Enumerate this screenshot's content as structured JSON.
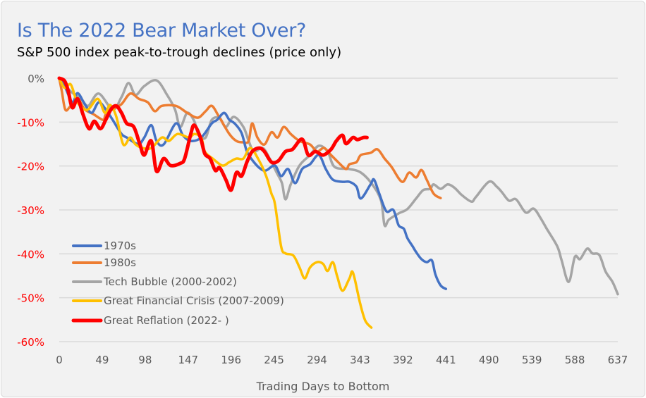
{
  "chart_data": {
    "type": "line",
    "title": "Is The 2022 Bear Market Over?",
    "subtitle": "S&P 500 index peak-to-trough declines (price only)",
    "xlabel": "Trading Days to Bottom",
    "ylabel": "",
    "xlim": [
      0,
      637
    ],
    "ylim": [
      -60,
      0
    ],
    "x_ticks": [
      "0",
      "49",
      "98",
      "147",
      "196",
      "245",
      "294",
      "343",
      "392",
      "441",
      "490",
      "539",
      "588",
      "637"
    ],
    "y_ticks": [
      {
        "value": 0,
        "label": "0%",
        "color": "#595959"
      },
      {
        "value": -10,
        "label": "-10%",
        "color": "#ff0000"
      },
      {
        "value": -20,
        "label": "-20%",
        "color": "#ff0000"
      },
      {
        "value": -30,
        "label": "-30%",
        "color": "#ff0000"
      },
      {
        "value": -40,
        "label": "-40%",
        "color": "#ff0000"
      },
      {
        "value": -50,
        "label": "-50%",
        "color": "#ff0000"
      },
      {
        "value": -60,
        "label": "-60%",
        "color": "#ff0000"
      }
    ],
    "grid": "horizontal",
    "legend_position": "bottom-left",
    "series": [
      {
        "name": "1970s",
        "color": "#4472c4",
        "points": [
          [
            0,
            0
          ],
          [
            7,
            -2.2
          ],
          [
            15,
            -5.5
          ],
          [
            21,
            -3.4
          ],
          [
            29,
            -5.9
          ],
          [
            37,
            -7.9
          ],
          [
            45,
            -5.5
          ],
          [
            53,
            -7.1
          ],
          [
            61,
            -9.5
          ],
          [
            71,
            -12.7
          ],
          [
            77,
            -13.5
          ],
          [
            90,
            -15
          ],
          [
            97,
            -13.5
          ],
          [
            105,
            -10.7
          ],
          [
            111,
            -14.3
          ],
          [
            119,
            -15.1
          ],
          [
            133,
            -10.3
          ],
          [
            141,
            -13
          ],
          [
            150,
            -14.3
          ],
          [
            162,
            -13.5
          ],
          [
            174,
            -10.3
          ],
          [
            180,
            -9.5
          ],
          [
            188,
            -7.9
          ],
          [
            194,
            -9.5
          ],
          [
            200,
            -10.3
          ],
          [
            208,
            -12.5
          ],
          [
            214,
            -16.7
          ],
          [
            222,
            -19.1
          ],
          [
            230,
            -20.7
          ],
          [
            236,
            -21
          ],
          [
            246,
            -19.9
          ],
          [
            253,
            -22.3
          ],
          [
            261,
            -20.7
          ],
          [
            269,
            -23.9
          ],
          [
            277,
            -20.7
          ],
          [
            286,
            -19.6
          ],
          [
            296,
            -17.5
          ],
          [
            304,
            -20.7
          ],
          [
            312,
            -23.1
          ],
          [
            323,
            -23.6
          ],
          [
            331,
            -23.6
          ],
          [
            339,
            -24.7
          ],
          [
            344,
            -27.4
          ],
          [
            355,
            -24.2
          ],
          [
            359,
            -23.1
          ],
          [
            365,
            -26.3
          ],
          [
            373,
            -30.3
          ],
          [
            381,
            -30
          ],
          [
            387,
            -33.5
          ],
          [
            393,
            -34.3
          ],
          [
            397,
            -36.4
          ],
          [
            403,
            -38.3
          ],
          [
            407,
            -39.6
          ],
          [
            413,
            -41.2
          ],
          [
            419,
            -41.9
          ],
          [
            425,
            -41.5
          ],
          [
            429,
            -44.7
          ],
          [
            435,
            -47.2
          ],
          [
            441,
            -48
          ]
        ]
      },
      {
        "name": "1980s",
        "color": "#ed7d31",
        "points": [
          [
            0,
            0
          ],
          [
            3,
            -3
          ],
          [
            7,
            -7.2
          ],
          [
            13,
            -6.3
          ],
          [
            21,
            -4.7
          ],
          [
            29,
            -7.1
          ],
          [
            39,
            -8.2
          ],
          [
            50,
            -9.5
          ],
          [
            53,
            -8.3
          ],
          [
            61,
            -7.1
          ],
          [
            71,
            -5.9
          ],
          [
            81,
            -3.5
          ],
          [
            91,
            -4.7
          ],
          [
            101,
            -5.5
          ],
          [
            109,
            -7.5
          ],
          [
            117,
            -6.3
          ],
          [
            133,
            -6.3
          ],
          [
            146,
            -7.9
          ],
          [
            158,
            -9
          ],
          [
            167,
            -7.5
          ],
          [
            174,
            -6.3
          ],
          [
            182,
            -8.7
          ],
          [
            194,
            -12.7
          ],
          [
            202,
            -14.3
          ],
          [
            210,
            -14.6
          ],
          [
            216,
            -14.3
          ],
          [
            220,
            -10.3
          ],
          [
            226,
            -13.5
          ],
          [
            234,
            -15.1
          ],
          [
            242,
            -12.3
          ],
          [
            249,
            -13.5
          ],
          [
            256,
            -11.1
          ],
          [
            264,
            -12.7
          ],
          [
            274,
            -14.3
          ],
          [
            286,
            -15.1
          ],
          [
            294,
            -16.7
          ],
          [
            302,
            -15.9
          ],
          [
            310,
            -17.5
          ],
          [
            318,
            -19.1
          ],
          [
            327,
            -20.7
          ],
          [
            331,
            -19.6
          ],
          [
            339,
            -19.1
          ],
          [
            344,
            -17.5
          ],
          [
            355,
            -17
          ],
          [
            363,
            -16.2
          ],
          [
            371,
            -18.3
          ],
          [
            379,
            -20.2
          ],
          [
            391,
            -23.6
          ],
          [
            399,
            -21.5
          ],
          [
            407,
            -22.6
          ],
          [
            413,
            -20.9
          ],
          [
            419,
            -23.1
          ],
          [
            427,
            -26.3
          ],
          [
            435,
            -27.3
          ]
        ]
      },
      {
        "name": "Tech Bubble (2000-2002)",
        "color": "#a5a5a5",
        "points": [
          [
            0,
            0
          ],
          [
            13,
            -3
          ],
          [
            25,
            -4.7
          ],
          [
            33,
            -6.3
          ],
          [
            45,
            -3.5
          ],
          [
            61,
            -7.1
          ],
          [
            71,
            -4.3
          ],
          [
            79,
            -1.1
          ],
          [
            87,
            -3.8
          ],
          [
            97,
            -1.8
          ],
          [
            111,
            -0.5
          ],
          [
            123,
            -3.8
          ],
          [
            132,
            -7.1
          ],
          [
            138,
            -11.1
          ],
          [
            146,
            -7.9
          ],
          [
            154,
            -9.8
          ],
          [
            159,
            -13
          ],
          [
            167,
            -13.5
          ],
          [
            174,
            -9.5
          ],
          [
            183,
            -9.1
          ],
          [
            190,
            -11.1
          ],
          [
            199,
            -8.8
          ],
          [
            210,
            -11.1
          ],
          [
            216,
            -14.3
          ],
          [
            222,
            -16.7
          ],
          [
            232,
            -15.9
          ],
          [
            240,
            -18.3
          ],
          [
            248,
            -21.5
          ],
          [
            254,
            -23.9
          ],
          [
            258,
            -27.6
          ],
          [
            264,
            -24.2
          ],
          [
            274,
            -19.9
          ],
          [
            286,
            -17.5
          ],
          [
            296,
            -15.4
          ],
          [
            306,
            -16.7
          ],
          [
            314,
            -20.2
          ],
          [
            331,
            -20.7
          ],
          [
            344,
            -21.5
          ],
          [
            357,
            -24.2
          ],
          [
            367,
            -27.9
          ],
          [
            371,
            -33.5
          ],
          [
            376,
            -32.2
          ],
          [
            387,
            -30.8
          ],
          [
            397,
            -29.8
          ],
          [
            407,
            -27.4
          ],
          [
            415,
            -25.5
          ],
          [
            423,
            -25.2
          ],
          [
            427,
            -24.2
          ],
          [
            435,
            -25.2
          ],
          [
            443,
            -24.2
          ],
          [
            451,
            -25
          ],
          [
            459,
            -26.6
          ],
          [
            470,
            -28.1
          ],
          [
            475,
            -27.1
          ],
          [
            490,
            -23.6
          ],
          [
            499,
            -24.7
          ],
          [
            505,
            -26
          ],
          [
            513,
            -27.9
          ],
          [
            521,
            -27.6
          ],
          [
            532,
            -30.6
          ],
          [
            541,
            -29.7
          ],
          [
            549,
            -31.9
          ],
          [
            556,
            -34.3
          ],
          [
            568,
            -38.3
          ],
          [
            573,
            -41.5
          ],
          [
            581,
            -46.4
          ],
          [
            588,
            -40.7
          ],
          [
            594,
            -41.2
          ],
          [
            602,
            -38.8
          ],
          [
            608,
            -39.9
          ],
          [
            616,
            -40.3
          ],
          [
            623,
            -44
          ],
          [
            631,
            -46.4
          ],
          [
            637,
            -49.2
          ]
        ]
      },
      {
        "name": "Great Financial Crisis (2007-2009)",
        "color": "#ffc000",
        "points": [
          [
            0,
            0
          ],
          [
            6,
            -2.2
          ],
          [
            13,
            -1.4
          ],
          [
            19,
            -4.7
          ],
          [
            25,
            -6.6
          ],
          [
            33,
            -7.1
          ],
          [
            44,
            -4.7
          ],
          [
            52,
            -7.9
          ],
          [
            58,
            -6.1
          ],
          [
            65,
            -8.7
          ],
          [
            73,
            -15.1
          ],
          [
            81,
            -13.5
          ],
          [
            87,
            -15.1
          ],
          [
            95,
            -15.9
          ],
          [
            105,
            -15.9
          ],
          [
            117,
            -13.5
          ],
          [
            125,
            -14.3
          ],
          [
            135,
            -12.7
          ],
          [
            148,
            -13.5
          ],
          [
            154,
            -12.7
          ],
          [
            162,
            -13.5
          ],
          [
            166,
            -16.7
          ],
          [
            175,
            -18.3
          ],
          [
            186,
            -19.9
          ],
          [
            194,
            -19.1
          ],
          [
            202,
            -18.3
          ],
          [
            210,
            -18.3
          ],
          [
            218,
            -15.9
          ],
          [
            228,
            -18.8
          ],
          [
            236,
            -22.3
          ],
          [
            242,
            -26.3
          ],
          [
            246,
            -28.7
          ],
          [
            253,
            -38.3
          ],
          [
            258,
            -39.9
          ],
          [
            267,
            -40.4
          ],
          [
            274,
            -43.1
          ],
          [
            280,
            -45.6
          ],
          [
            286,
            -43.1
          ],
          [
            294,
            -41.9
          ],
          [
            301,
            -42.3
          ],
          [
            306,
            -43.9
          ],
          [
            312,
            -41.9
          ],
          [
            317,
            -45.1
          ],
          [
            323,
            -48.4
          ],
          [
            331,
            -45.6
          ],
          [
            335,
            -44.3
          ],
          [
            343,
            -51.2
          ],
          [
            349,
            -55.2
          ],
          [
            356,
            -56.8
          ]
        ]
      },
      {
        "name": "Great Reflation (2022- )",
        "color": "#ff0000",
        "points": [
          [
            0,
            0
          ],
          [
            6,
            -0.6
          ],
          [
            10,
            -2.7
          ],
          [
            15,
            -6.7
          ],
          [
            21,
            -4.7
          ],
          [
            27,
            -8.2
          ],
          [
            34,
            -11.5
          ],
          [
            40,
            -9.8
          ],
          [
            47,
            -11.5
          ],
          [
            53,
            -9.5
          ],
          [
            59,
            -7.1
          ],
          [
            65,
            -6.3
          ],
          [
            71,
            -7.9
          ],
          [
            77,
            -10.3
          ],
          [
            85,
            -11.1
          ],
          [
            92,
            -15.1
          ],
          [
            97,
            -17.5
          ],
          [
            105,
            -14.3
          ],
          [
            111,
            -21.2
          ],
          [
            119,
            -18.3
          ],
          [
            127,
            -19.9
          ],
          [
            138,
            -19.4
          ],
          [
            143,
            -18.3
          ],
          [
            150,
            -12.7
          ],
          [
            154,
            -10.7
          ],
          [
            161,
            -13.5
          ],
          [
            166,
            -17.2
          ],
          [
            172,
            -18.3
          ],
          [
            178,
            -21
          ],
          [
            183,
            -20.4
          ],
          [
            190,
            -23.1
          ],
          [
            196,
            -25.5
          ],
          [
            202,
            -21.5
          ],
          [
            208,
            -22.3
          ],
          [
            214,
            -19.1
          ],
          [
            220,
            -16.7
          ],
          [
            228,
            -15.9
          ],
          [
            234,
            -16.7
          ],
          [
            242,
            -19.1
          ],
          [
            250,
            -18.8
          ],
          [
            258,
            -16.7
          ],
          [
            266,
            -16.2
          ],
          [
            277,
            -13.9
          ],
          [
            284,
            -17.5
          ],
          [
            292,
            -16.7
          ],
          [
            301,
            -17.5
          ],
          [
            310,
            -16.2
          ],
          [
            316,
            -14.3
          ],
          [
            323,
            -13
          ],
          [
            327,
            -14.9
          ],
          [
            335,
            -13.5
          ],
          [
            340,
            -14
          ],
          [
            347,
            -13.5
          ],
          [
            351,
            -13.5
          ]
        ]
      }
    ]
  }
}
